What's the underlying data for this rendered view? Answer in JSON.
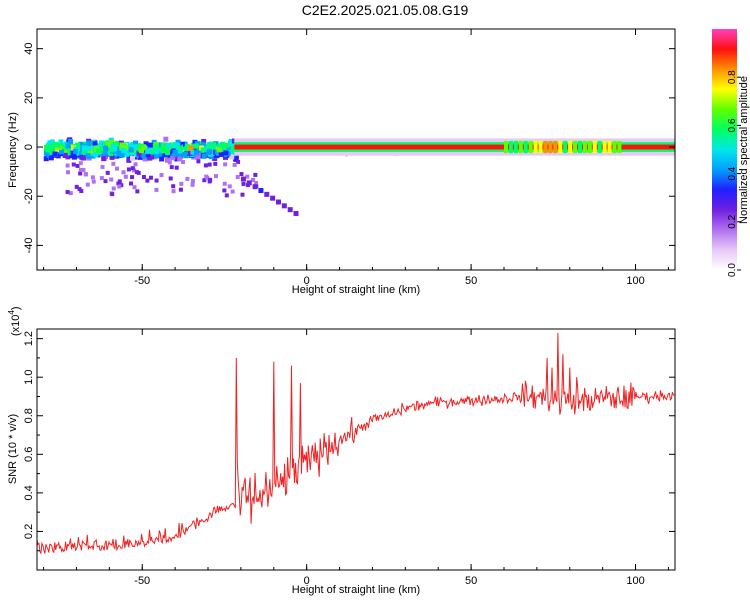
{
  "title": "C2E2.2025.021.05.08.G19",
  "chart_data": [
    {
      "type": "heatmap",
      "xlabel": "Height of straight line (km)",
      "ylabel": "Frequency (Hz)",
      "xlim": [
        -82,
        112
      ],
      "ylim": [
        -50,
        48
      ],
      "xticks": [
        -50,
        0,
        50,
        100
      ],
      "yticks": [
        40,
        20,
        0,
        -20,
        -40
      ],
      "colorbar": {
        "label": "Normalized spectral amplitude",
        "range": [
          0,
          1
        ],
        "ticks": [
          "0.0",
          "0.2",
          "0.4",
          "0.6",
          "0.8"
        ],
        "tick_values": [
          0,
          0.2,
          0.4,
          0.6,
          0.8
        ],
        "colormap": [
          "#ffffff",
          "#e8c8f8",
          "#b070f0",
          "#7020e0",
          "#2020ff",
          "#00a0ff",
          "#00e8e8",
          "#00ff60",
          "#60ff00",
          "#ffff00",
          "#ff9000",
          "#ff1010",
          "#ff40c0"
        ]
      },
      "features": [
        {
          "name": "broadband noise",
          "x": [
            -82,
            -22
          ],
          "freq_spread": 4,
          "peak_amplitude": 0.6
        },
        {
          "name": "main signal",
          "x": [
            -22,
            112
          ],
          "freq": 0,
          "peak_amplitude": 0.95
        },
        {
          "name": "descending trail",
          "x": [
            -20,
            -4
          ],
          "freq": [
            -12,
            -26
          ],
          "peak_amplitude": 0.25
        }
      ]
    },
    {
      "type": "line",
      "xlabel": "Height of straight line (km)",
      "ylabel": "SNR (10 * v/v)",
      "scale_label_main": "(x10",
      "scale_label_exp": "4",
      "scale_label_end": ")",
      "xlim": [
        -82,
        112
      ],
      "ylim": [
        0,
        1.25
      ],
      "xticks": [
        -50,
        0,
        50,
        100
      ],
      "yticks": [
        "0.2",
        "0.4",
        "0.6",
        "0.8",
        "1.0",
        "1.2"
      ],
      "ytick_values": [
        0.2,
        0.4,
        0.6,
        0.8,
        1.0,
        1.2
      ],
      "series": [
        {
          "color": "#ee2222",
          "x": [
            -82,
            -70,
            -60,
            -50,
            -40,
            -35,
            -30,
            -25,
            -20,
            -15,
            -10,
            -5,
            0,
            5,
            10,
            15,
            20,
            25,
            30,
            40,
            50,
            60,
            65,
            70,
            75,
            80,
            85,
            90,
            95,
            100,
            105,
            112
          ],
          "y": [
            0.08,
            0.1,
            0.1,
            0.12,
            0.15,
            0.2,
            0.25,
            0.3,
            0.35,
            0.38,
            0.42,
            0.5,
            0.55,
            0.62,
            0.68,
            0.72,
            0.78,
            0.8,
            0.84,
            0.87,
            0.88,
            0.89,
            0.9,
            0.9,
            0.88,
            0.87,
            0.88,
            0.89,
            0.89,
            0.9,
            0.9,
            0.91
          ],
          "spikes": [
            {
              "x": -21.5,
              "y": 1.1
            },
            {
              "x": -10,
              "y": 1.08
            },
            {
              "x": -4.5,
              "y": 1.06
            },
            {
              "x": -2,
              "y": 0.97
            },
            {
              "x": 73,
              "y": 1.1
            },
            {
              "x": 74.5,
              "y": 1.05
            },
            {
              "x": 76.5,
              "y": 1.23
            },
            {
              "x": 78,
              "y": 1.12
            },
            {
              "x": 80,
              "y": 1.05
            },
            {
              "x": 82,
              "y": 1.0
            }
          ]
        }
      ]
    }
  ]
}
